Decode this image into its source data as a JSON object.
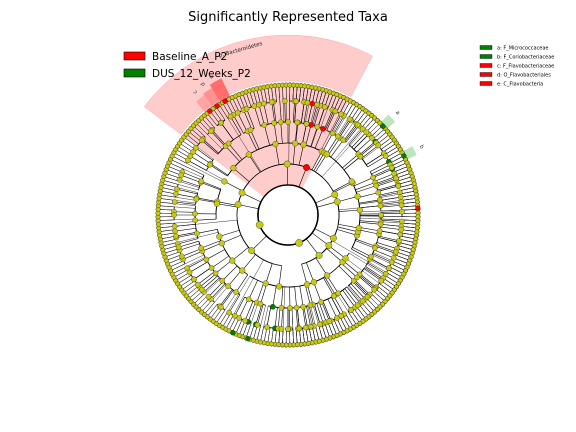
{
  "chart_data": {
    "type": "cladogram",
    "title": "Significantly Represented Taxa",
    "groups": [
      {
        "name": "Baseline_A_P2",
        "color": "#ff0000"
      },
      {
        "name": "DUS_12_Weeks_P2",
        "color": "#008000"
      }
    ],
    "highlighted_clades": [
      {
        "letter": "a",
        "taxon": "F_Micrococcaceae",
        "group": "DUS_12_Weeks_P2"
      },
      {
        "letter": "b",
        "taxon": "F_Coriobacteriaceae",
        "group": "DUS_12_Weeks_P2"
      },
      {
        "letter": "c",
        "taxon": "F_Flavobacteriaceae",
        "group": "Baseline_A_P2"
      },
      {
        "letter": "d",
        "taxon": "O_Flavobacteriales",
        "group": "Baseline_A_P2"
      },
      {
        "letter": "e",
        "taxon": "C_Flavobacteria",
        "group": "Baseline_A_P2"
      }
    ],
    "sector_labels": [
      {
        "text": "p: Bacteroidetes",
        "group": "Baseline_A_P2"
      },
      {
        "text": "a",
        "group": "DUS_12_Weeks_P2"
      },
      {
        "text": "b",
        "group": "DUS_12_Weeks_P2"
      },
      {
        "text": "c",
        "group": "Baseline_A_P2"
      },
      {
        "text": "d",
        "group": "Baseline_A_P2"
      },
      {
        "text": "e",
        "group": "Baseline_A_P2"
      }
    ],
    "node_color": "#c8c818",
    "legend_position": "top-left"
  },
  "clade_legend": [
    {
      "text": "a: F_Micrococcaceae"
    },
    {
      "text": "b: F_Coriobacteriaceae"
    },
    {
      "text": "c: F_Flavobacteriaceae"
    },
    {
      "text": "d: O_Flavobacteriales"
    },
    {
      "text": "e: C_Flavobacteria"
    }
  ]
}
